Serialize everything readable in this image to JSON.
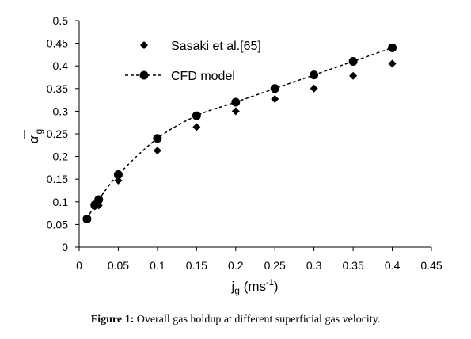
{
  "chart_data": {
    "type": "scatter",
    "xlabel": {
      "main": "j",
      "sub": "g",
      "unit_open": " (ms",
      "sup": "-1",
      "unit_close": ")"
    },
    "ylabel": {
      "main": "α",
      "sub": "g"
    },
    "xlim": [
      0,
      0.45
    ],
    "ylim": [
      0,
      0.5
    ],
    "xticks": [
      "0",
      "0.05",
      "0.1",
      "0.15",
      "0.2",
      "0.25",
      "0.3",
      "0.35",
      "0.4",
      "0.45"
    ],
    "yticks": [
      "0",
      "0.05",
      "0.1",
      "0.15",
      "0.2",
      "0.25",
      "0.3",
      "0.35",
      "0.4",
      "0.45",
      "0.5"
    ],
    "grid": false,
    "legend_position": "top-left",
    "series": [
      {
        "name": "Sasaki et al.[65]",
        "marker": "diamond",
        "line": "none",
        "x": [
          0.01,
          0.02,
          0.025,
          0.05,
          0.1,
          0.15,
          0.2,
          0.25,
          0.3,
          0.35,
          0.4
        ],
        "y": [
          0.063,
          0.09,
          0.092,
          0.147,
          0.213,
          0.265,
          0.3,
          0.327,
          0.35,
          0.378,
          0.405
        ]
      },
      {
        "name": "CFD model",
        "marker": "circle",
        "line": "dashed",
        "x": [
          0.01,
          0.02,
          0.025,
          0.05,
          0.1,
          0.15,
          0.2,
          0.25,
          0.3,
          0.35,
          0.4
        ],
        "y": [
          0.062,
          0.093,
          0.105,
          0.16,
          0.24,
          0.29,
          0.32,
          0.35,
          0.38,
          0.41,
          0.44
        ]
      }
    ]
  },
  "caption": {
    "label": "Figure 1:",
    "text": " Overall gas holdup at different superficial gas velocity."
  }
}
